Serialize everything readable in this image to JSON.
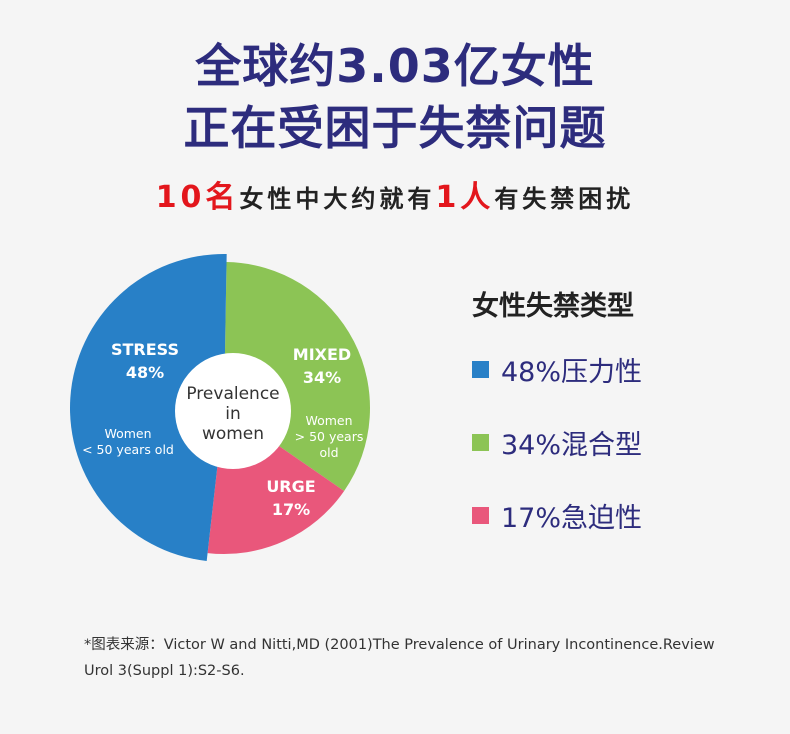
{
  "title_line1": "全球约3.03亿女性",
  "title_line2": "正在受困于失禁问题",
  "subtitle": {
    "num1": "10名",
    "text1": "女性中大约就有",
    "num2": "1人",
    "text2": "有失禁困扰"
  },
  "chart_data": {
    "type": "pie",
    "center_label": [
      "Prevalence",
      "in",
      "women"
    ],
    "slices": [
      {
        "name": "MIXED",
        "value": 34,
        "label": "34%",
        "note": [
          "Women",
          "> 50 years",
          "old"
        ],
        "color": "#8cc455"
      },
      {
        "name": "URGE",
        "value": 17,
        "label": "17%",
        "note": [],
        "color": "#e9577b"
      },
      {
        "name": "STRESS",
        "value": 48,
        "label": "48%",
        "note": [
          "Women",
          "< 50 years old"
        ],
        "color": "#2880c7"
      }
    ]
  },
  "legend": {
    "title": "女性失禁类型",
    "items": [
      {
        "label": "48%压力性",
        "color": "#2880c7"
      },
      {
        "label": "34%混合型",
        "color": "#8cc455"
      },
      {
        "label": "17%急迫性",
        "color": "#e9577b"
      }
    ]
  },
  "footnote": "*图表来源：Victor W and Nitti,MD (2001)The Prevalence of Urinary Incontinence.Review Urol 3(Suppl 1):S2-S6."
}
